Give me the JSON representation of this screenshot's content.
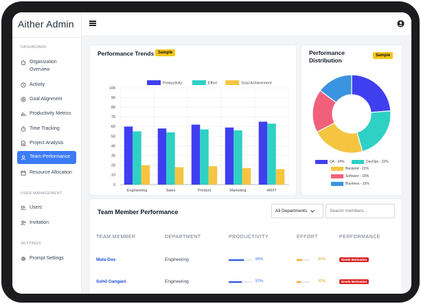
{
  "app": {
    "title": "Aither Admin"
  },
  "sidebar": {
    "sections": [
      {
        "label": "DASHBOARD"
      },
      {
        "label": "USER MANAGEMENT"
      },
      {
        "label": "SETTINGS"
      }
    ],
    "items": [
      {
        "label": "Organization Overview",
        "icon": "home-icon"
      },
      {
        "label": "Activity",
        "icon": "clock-icon"
      },
      {
        "label": "Goal Alignment",
        "icon": "target-icon"
      },
      {
        "label": "Productivity Metrics",
        "icon": "bar-chart-icon"
      },
      {
        "label": "Time Tracking",
        "icon": "timer-icon"
      },
      {
        "label": "Project Analysis",
        "icon": "document-icon"
      },
      {
        "label": "Team Performance",
        "icon": "team-icon",
        "active": true
      },
      {
        "label": "Resource Allocation",
        "icon": "calendar-icon"
      },
      {
        "label": "Users",
        "icon": "users-icon"
      },
      {
        "label": "Invitation",
        "icon": "user-plus-icon"
      },
      {
        "label": "Prompt Settings",
        "icon": "gear-icon"
      }
    ]
  },
  "topbar": {
    "menu_icon": "hamburger-icon",
    "user_icon": "user-circle-icon"
  },
  "performance_trends": {
    "title": "Performance Trends",
    "badge": "Sample",
    "chart_data": {
      "type": "bar",
      "categories": [
        "Engineering",
        "Sales",
        "Product",
        "Marketing",
        "HR/IT"
      ],
      "series": [
        {
          "name": "Productivity",
          "color": "#3f3ff0",
          "values": [
            60,
            58,
            62,
            59,
            65
          ]
        },
        {
          "name": "Effort",
          "color": "#2ed1c4",
          "values": [
            55,
            54,
            57,
            56,
            63
          ]
        },
        {
          "name": "Goal Achievement",
          "color": "#f5c542",
          "values": [
            20,
            18,
            19,
            17,
            16
          ]
        }
      ],
      "ylim": [
        0,
        100
      ],
      "yticks": [
        "0",
        "10",
        "20",
        "30",
        "40",
        "50",
        "60",
        "70",
        "80",
        "90",
        "100"
      ],
      "grid": true,
      "legend": "top"
    }
  },
  "performance_distribution": {
    "title": "Performance Distribution",
    "badge": "Sample",
    "chart_data": {
      "type": "pie",
      "slices": [
        {
          "label": "QA - 24%",
          "value": 24,
          "color": "#3f3ff0"
        },
        {
          "label": "DevOps - 22%",
          "value": 22,
          "color": "#2ed1c4"
        },
        {
          "label": "Backend - 22%",
          "value": 22,
          "color": "#f5c542"
        },
        {
          "label": "Software - 18%",
          "value": 18,
          "color": "#f0607a"
        },
        {
          "label": "Business - 15%",
          "value": 15,
          "color": "#3a94e0"
        }
      ]
    }
  },
  "team_table": {
    "title": "Team Member Performance",
    "filter": {
      "value": "All Departments"
    },
    "search": {
      "placeholder": "Search members..."
    },
    "columns": [
      "TEAM MEMBER",
      "DEPARTMENT",
      "PRODUCTIVITY",
      "EFFORT",
      "PERFORMANCE"
    ],
    "rows": [
      {
        "name": "Mala Das",
        "department": "Engineering",
        "productivity": "65%",
        "productivity_value": 0.65,
        "effort": "42%",
        "effort_value": 0.42,
        "performance": "Needs Motivation"
      },
      {
        "name": "Sohil Gangani",
        "department": "Engineering",
        "productivity": "57%",
        "productivity_value": 0.57,
        "effort": "32%",
        "effort_value": 0.32,
        "performance": "Needs Motivation"
      }
    ]
  }
}
